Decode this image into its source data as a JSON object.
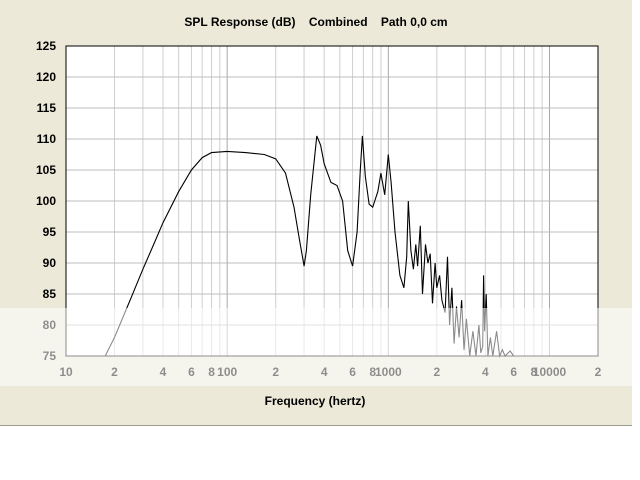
{
  "chart_data": {
    "type": "line",
    "title": "SPL Response (dB)    Combined    Path 0,0 cm",
    "xlabel": "Frequency (hertz)",
    "ylabel": "",
    "x_scale": "log",
    "xlim": [
      10,
      20000
    ],
    "ylim": [
      75,
      125
    ],
    "y_ticks": [
      75,
      80,
      85,
      90,
      95,
      100,
      105,
      110,
      115,
      120,
      125
    ],
    "x_tick_labels": [
      {
        "value": 10,
        "label": "10"
      },
      {
        "value": 20,
        "label": "2"
      },
      {
        "value": 40,
        "label": "4"
      },
      {
        "value": 60,
        "label": "6"
      },
      {
        "value": 80,
        "label": "8"
      },
      {
        "value": 100,
        "label": "100"
      },
      {
        "value": 200,
        "label": "2"
      },
      {
        "value": 400,
        "label": "4"
      },
      {
        "value": 600,
        "label": "6"
      },
      {
        "value": 800,
        "label": "8"
      },
      {
        "value": 1000,
        "label": "1000"
      },
      {
        "value": 2000,
        "label": "2"
      },
      {
        "value": 4000,
        "label": "4"
      },
      {
        "value": 6000,
        "label": "6"
      },
      {
        "value": 8000,
        "label": "8"
      },
      {
        "value": 10000,
        "label": "10000"
      },
      {
        "value": 20000,
        "label": "2"
      }
    ],
    "grid": true,
    "line_color": "#000000",
    "series": [
      {
        "points": [
          [
            17.5,
            75
          ],
          [
            20,
            78
          ],
          [
            25,
            84
          ],
          [
            30,
            89
          ],
          [
            35,
            93
          ],
          [
            40,
            96.5
          ],
          [
            50,
            101.5
          ],
          [
            60,
            105
          ],
          [
            70,
            107
          ],
          [
            80,
            107.8
          ],
          [
            100,
            108
          ],
          [
            130,
            107.8
          ],
          [
            170,
            107.5
          ],
          [
            200,
            106.8
          ],
          [
            230,
            104.5
          ],
          [
            260,
            99
          ],
          [
            280,
            94
          ],
          [
            300,
            89.5
          ],
          [
            310,
            92
          ],
          [
            330,
            101
          ],
          [
            360,
            110.5
          ],
          [
            380,
            109
          ],
          [
            400,
            106
          ],
          [
            440,
            103
          ],
          [
            480,
            102.5
          ],
          [
            520,
            100
          ],
          [
            560,
            92
          ],
          [
            600,
            89.5
          ],
          [
            640,
            95
          ],
          [
            670,
            105
          ],
          [
            690,
            110.5
          ],
          [
            720,
            104
          ],
          [
            760,
            99.5
          ],
          [
            800,
            99
          ],
          [
            860,
            101.5
          ],
          [
            900,
            104.5
          ],
          [
            950,
            101
          ],
          [
            1000,
            107.5
          ],
          [
            1040,
            103
          ],
          [
            1100,
            95
          ],
          [
            1180,
            88
          ],
          [
            1250,
            86
          ],
          [
            1300,
            91
          ],
          [
            1330,
            100
          ],
          [
            1380,
            92
          ],
          [
            1430,
            89
          ],
          [
            1480,
            93
          ],
          [
            1520,
            89.5
          ],
          [
            1580,
            96
          ],
          [
            1630,
            85
          ],
          [
            1700,
            93
          ],
          [
            1760,
            90
          ],
          [
            1820,
            91.5
          ],
          [
            1880,
            83.5
          ],
          [
            1950,
            90
          ],
          [
            2000,
            86
          ],
          [
            2080,
            88
          ],
          [
            2150,
            84
          ],
          [
            2250,
            82
          ],
          [
            2330,
            91
          ],
          [
            2400,
            80
          ],
          [
            2480,
            86
          ],
          [
            2560,
            77
          ],
          [
            2650,
            83
          ],
          [
            2750,
            78
          ],
          [
            2850,
            84
          ],
          [
            2950,
            76
          ],
          [
            3050,
            81
          ],
          [
            3200,
            75
          ],
          [
            3350,
            79
          ],
          [
            3500,
            75
          ],
          [
            3650,
            80
          ],
          [
            3750,
            75.5
          ],
          [
            3850,
            76.5
          ],
          [
            3900,
            88
          ],
          [
            3960,
            79
          ],
          [
            4050,
            85
          ],
          [
            4150,
            75
          ],
          [
            4300,
            78
          ],
          [
            4450,
            75
          ],
          [
            4700,
            79
          ],
          [
            4900,
            75
          ],
          [
            5100,
            76
          ],
          [
            5300,
            75
          ],
          [
            5700,
            75.8
          ],
          [
            6000,
            75
          ]
        ]
      }
    ]
  }
}
